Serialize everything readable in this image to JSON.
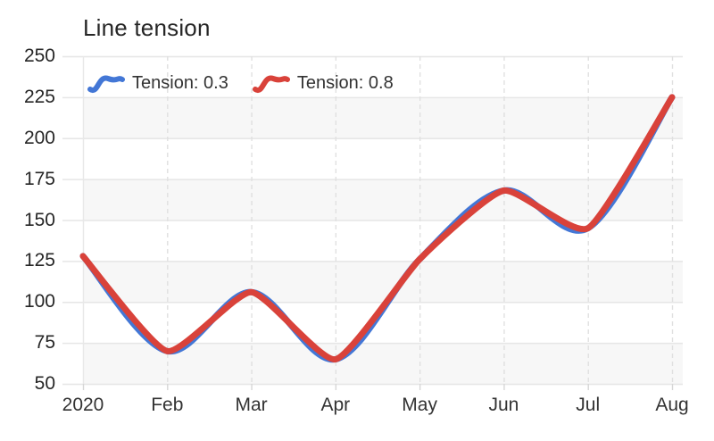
{
  "title": "Line tension",
  "legend": {
    "items": [
      {
        "label": "Tension: 0.3",
        "color": "#4377d6"
      },
      {
        "label": "Tension: 0.8",
        "color": "#d9423a"
      }
    ]
  },
  "chart_data": {
    "type": "line",
    "title": "Line tension",
    "categories": [
      "2020",
      "Feb",
      "Mar",
      "Apr",
      "May",
      "Jun",
      "Jul",
      "Aug"
    ],
    "series": [
      {
        "name": "Tension: 0.3",
        "tension": 0.3,
        "color": "#4377d6",
        "values": [
          128,
          70,
          106,
          65,
          126,
          168,
          145,
          225
        ]
      },
      {
        "name": "Tension: 0.8",
        "tension": 0.8,
        "color": "#d9423a",
        "values": [
          128,
          70,
          106,
          65,
          126,
          168,
          145,
          225
        ]
      }
    ],
    "xlabel": "",
    "ylabel": "",
    "ylim": [
      50,
      250
    ],
    "y_ticks": [
      250,
      225,
      200,
      175,
      150,
      125,
      100,
      75,
      50
    ],
    "grid": {
      "horizontal": "solid",
      "vertical": "dashed",
      "alternate_bands": true
    },
    "legend_position": "top-left-inside"
  },
  "colors": {
    "band": "#f7f7f7",
    "grid_h": "#e6e6e6",
    "grid_v": "#e0e0e0",
    "grid_v_first": "#e8e8e8",
    "tick": "#d6d6d6",
    "title_text": "#262626",
    "axis_text": "#333333"
  }
}
